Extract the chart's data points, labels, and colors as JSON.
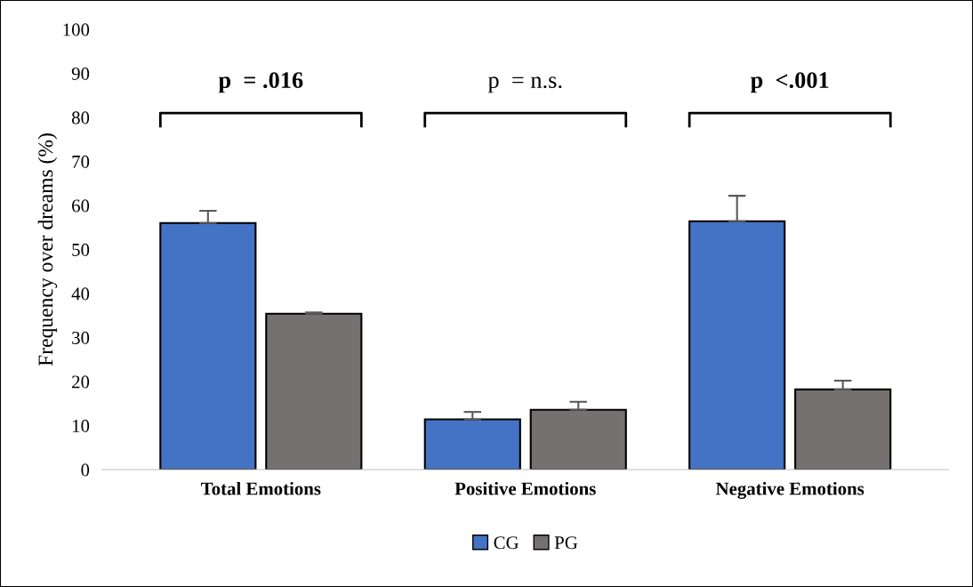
{
  "chart_data": {
    "type": "bar",
    "ylabel": "Frequency over dreams (%)",
    "categories": [
      "Total Emotions",
      "Positive Emotions",
      "Negative Emotions"
    ],
    "series": [
      {
        "name": "CG",
        "color": "#4472c4",
        "values": [
          56.0,
          11.4,
          56.4
        ],
        "errors": [
          [
            56.0,
            58.8
          ],
          [
            11.4,
            13.1
          ],
          [
            56.4,
            62.2
          ]
        ]
      },
      {
        "name": "PG",
        "color": "#767171",
        "values": [
          35.4,
          13.6,
          18.2
        ],
        "errors": [
          [
            35.4,
            35.7
          ],
          [
            13.6,
            15.4
          ],
          [
            18.2,
            20.2
          ]
        ]
      }
    ],
    "ylim": [
      0,
      100
    ],
    "yticks": [
      0,
      10,
      20,
      30,
      40,
      50,
      60,
      70,
      80,
      90,
      100
    ],
    "annotations": [
      "p  = .016",
      "p  = n.s.",
      "p  <.001"
    ],
    "grid": false,
    "legend": "bottom"
  }
}
